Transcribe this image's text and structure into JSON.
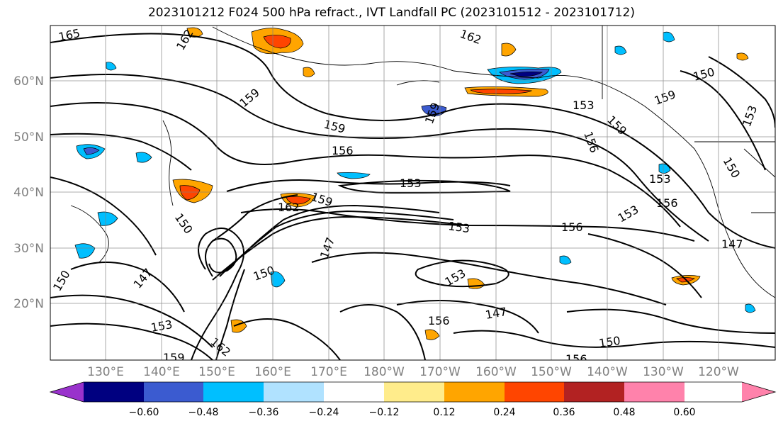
{
  "title": "2023101212 F024 500 hPa refract., IVT Landfall PC (2023101512 - 2023101712)",
  "lat_labels": [
    "60°N",
    "50°N",
    "40°N",
    "30°N",
    "20°N"
  ],
  "lon_labels": [
    "130°E",
    "140°E",
    "150°E",
    "160°E",
    "170°E",
    "180°W",
    "170°W",
    "160°W",
    "150°W",
    "140°W",
    "130°W",
    "120°W"
  ],
  "colorbar": {
    "colors": [
      "#9932cc",
      "#000080",
      "#3b5bd0",
      "#00bfff",
      "#b0e2ff",
      "#ffffff",
      "#ffec8b",
      "#ffa500",
      "#ff4500",
      "#b22222",
      "#ff82ab"
    ],
    "ticks": [
      "−0.60",
      "−0.48",
      "−0.36",
      "−0.24",
      "−0.12",
      "0.12",
      "0.24",
      "0.36",
      "0.48",
      "0.60"
    ]
  },
  "contour_labels": [
    "165",
    "162",
    "162",
    "159",
    "159",
    "156",
    "153",
    "159",
    "162",
    "153",
    "156",
    "150",
    "147",
    "150",
    "153",
    "147",
    "156",
    "159",
    "153",
    "150",
    "159",
    "159",
    "162",
    "156",
    "147",
    "150",
    "153",
    "150",
    "156",
    "153",
    "153",
    "159",
    "147",
    "153",
    "150",
    "156"
  ]
}
